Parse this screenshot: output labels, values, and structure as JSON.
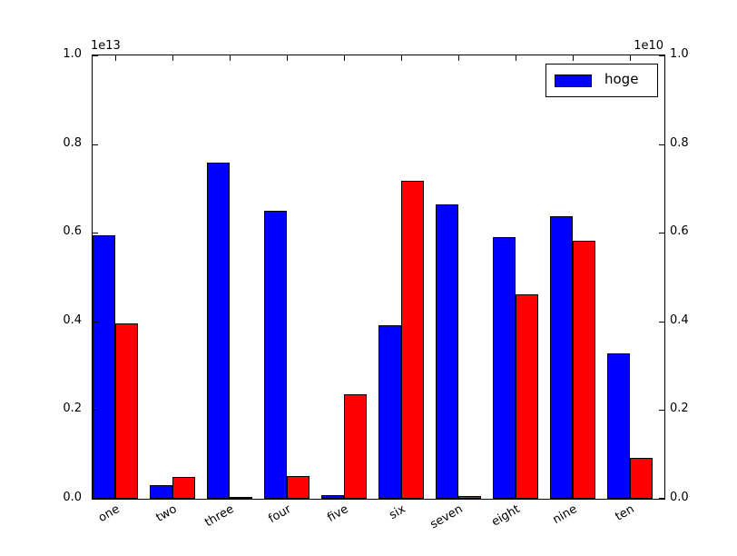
{
  "chart_data": {
    "type": "bar",
    "title": "",
    "xlabel": "",
    "ylabel": "",
    "grid": false,
    "categories": [
      "one",
      "two",
      "three",
      "four",
      "five",
      "six",
      "seven",
      "eight",
      "nine",
      "ten"
    ],
    "series": [
      {
        "name": "hoge",
        "color": "#0000ff",
        "axis": "left",
        "axis_multiplier_label": "1e13",
        "values": [
          0.595,
          0.03,
          0.758,
          0.649,
          0.008,
          0.391,
          0.663,
          0.59,
          0.638,
          0.327
        ]
      },
      {
        "name": "",
        "color": "#ff0000",
        "axis": "right",
        "axis_multiplier_label": "1e10",
        "values": [
          0.396,
          0.05,
          0.003,
          0.051,
          0.236,
          0.718,
          0.006,
          0.461,
          0.582,
          0.092
        ]
      }
    ],
    "left_axis": {
      "offset_label": "1e13",
      "range": [
        0.0,
        1.0
      ],
      "ticks": [
        "0.0",
        "0.2",
        "0.4",
        "0.6",
        "0.8",
        "1.0"
      ]
    },
    "right_axis": {
      "offset_label": "1e10",
      "range": [
        0.0,
        1.0
      ],
      "ticks": [
        "0.0",
        "0.2",
        "0.4",
        "0.6",
        "0.8",
        "1.0"
      ]
    },
    "legend": {
      "position": "upper right",
      "entries": [
        {
          "label": "hoge",
          "color": "#0000ff"
        }
      ]
    },
    "colors": {
      "bar_edge": "#000000",
      "axes": "#000000",
      "background": "#ffffff"
    }
  }
}
